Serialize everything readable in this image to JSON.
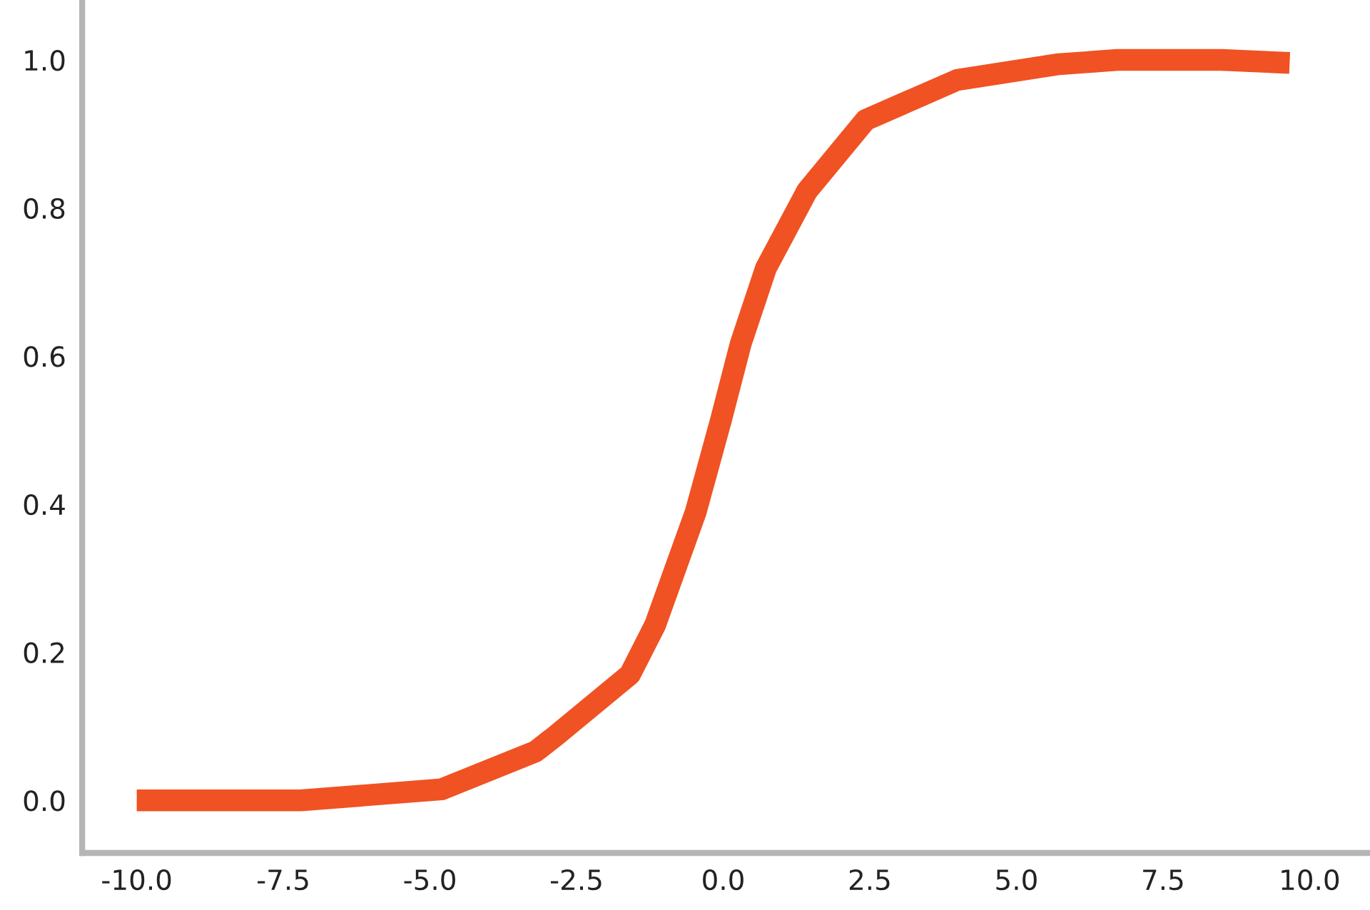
{
  "chart_data": {
    "type": "line",
    "x": [
      -10.0,
      -7.2,
      -4.8,
      -3.2,
      -2.86,
      -1.59,
      -1.16,
      -0.47,
      -0.04,
      0.3,
      0.73,
      1.43,
      2.43,
      3.99,
      5.69,
      6.72,
      8.5,
      9.66
    ],
    "series": [
      {
        "color": "#f05223",
        "values": [
          0.0,
          0.0,
          0.015,
          0.066,
          0.087,
          0.17,
          0.237,
          0.389,
          0.513,
          0.617,
          0.719,
          0.823,
          0.919,
          0.973,
          0.994,
          1.0,
          1.0,
          0.996
        ]
      }
    ],
    "xlim": [
      -10.93,
      11.03
    ],
    "ylim": [
      -0.071,
      1.081
    ],
    "xticks": [
      {
        "value": -10,
        "label": "-10.0"
      },
      {
        "value": -7.5,
        "label": "-7.5"
      },
      {
        "value": -5,
        "label": "-5.0"
      },
      {
        "value": -2.5,
        "label": "-2.5"
      },
      {
        "value": 0,
        "label": "0.0"
      },
      {
        "value": 2.5,
        "label": "2.5"
      },
      {
        "value": 5,
        "label": "5.0"
      },
      {
        "value": 7.5,
        "label": "7.5"
      },
      {
        "value": 10,
        "label": "10.0"
      }
    ],
    "yticks": [
      {
        "value": 0,
        "label": "0.0"
      },
      {
        "value": 0.2,
        "label": "0.2"
      },
      {
        "value": 0.4,
        "label": "0.4"
      },
      {
        "value": 0.6,
        "label": "0.6"
      },
      {
        "value": 0.8,
        "label": "0.8"
      },
      {
        "value": 1.0,
        "label": "1.0"
      }
    ],
    "grid": false,
    "legend": false,
    "marker": "none",
    "line_style": "solid"
  }
}
